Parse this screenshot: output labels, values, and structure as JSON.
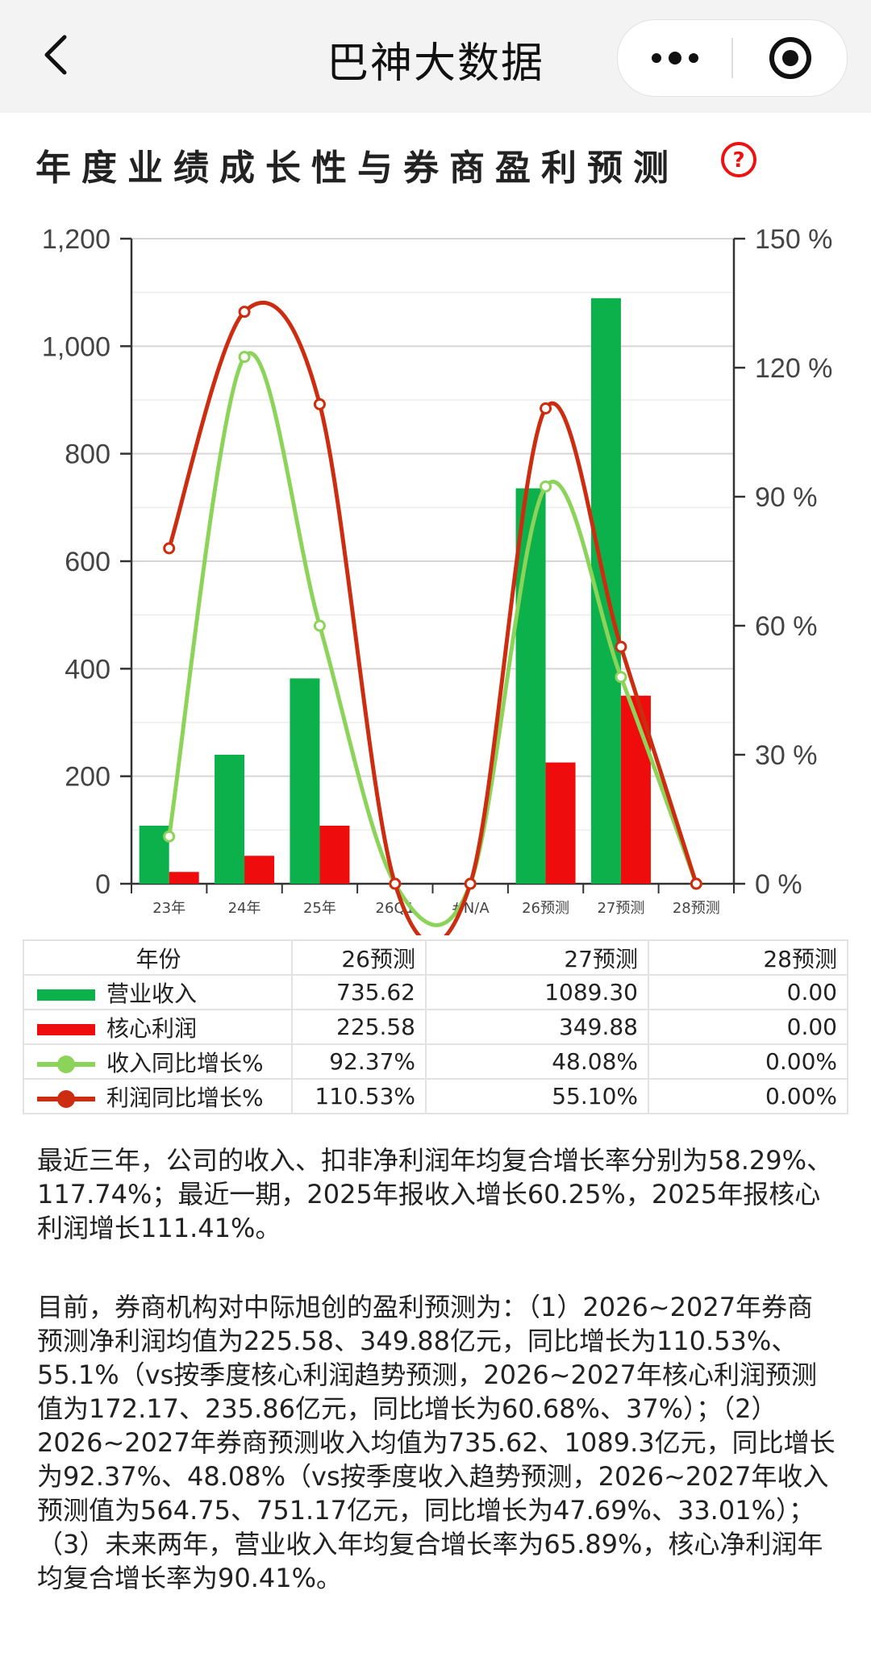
{
  "header": {
    "title": "巴神大数据"
  },
  "section": {
    "title": "年度业绩成长性与券商盈利预测"
  },
  "colors": {
    "revenue": "#0db14b",
    "profit": "#ee0c0c",
    "rev_growth": "#8cd35a",
    "profit_growth": "#cc2d10"
  },
  "chart_data": {
    "type": "bar",
    "categories": [
      "23年",
      "24年",
      "25年",
      "26Q1",
      "#N/A",
      "26预测",
      "27预测",
      "28预测"
    ],
    "y_left": {
      "min": 0,
      "max": 1200,
      "ticks": [
        "0",
        "200",
        "400",
        "600",
        "800",
        "1,000",
        "1,200"
      ]
    },
    "y_right": {
      "min": 0,
      "max": 150,
      "ticks": [
        "0 %",
        "30 %",
        "60 %",
        "90 %",
        "120 %",
        "150 %"
      ]
    },
    "series": [
      {
        "name": "营业收入",
        "type": "bar",
        "axis": "left",
        "values": [
          108,
          240,
          382,
          0,
          0,
          735.62,
          1089.3,
          0
        ]
      },
      {
        "name": "核心利润",
        "type": "bar",
        "axis": "left",
        "values": [
          22,
          52,
          108,
          0,
          0,
          225.58,
          349.88,
          0
        ]
      },
      {
        "name": "收入同比增长%",
        "type": "line",
        "axis": "right",
        "values": [
          11,
          122.5,
          60,
          0,
          0,
          92.37,
          48.08,
          0
        ]
      },
      {
        "name": "利润同比增长%",
        "type": "line",
        "axis": "right",
        "values": [
          78,
          133,
          111.5,
          0,
          0,
          110.53,
          55.1,
          0
        ]
      }
    ],
    "grid": true
  },
  "table": {
    "header_label": "年份",
    "columns": [
      "26预测",
      "27预测",
      "28预测"
    ],
    "rows": [
      {
        "label": "营业收入",
        "legend": "bar-green",
        "values": [
          "735.62",
          "1089.30",
          "0.00"
        ]
      },
      {
        "label": "核心利润",
        "legend": "bar-red",
        "values": [
          "225.58",
          "349.88",
          "0.00"
        ]
      },
      {
        "label": "收入同比增长%",
        "legend": "line-green",
        "values": [
          "92.37%",
          "48.08%",
          "0.00%"
        ]
      },
      {
        "label": "利润同比增长%",
        "legend": "line-red",
        "values": [
          "110.53%",
          "55.10%",
          "0.00%"
        ]
      }
    ]
  },
  "paragraphs": {
    "p1": "最近三年，公司的收入、扣非净利润年均复合增长率分别为58.29%、117.74%；最近一期，2025年报收入增长60.25%，2025年报核心利润增长111.41%。",
    "p2": "目前，券商机构对中际旭创的盈利预测为：（1）2026~2027年券商预测净利润均值为225.58、349.88亿元，同比增长为110.53%、55.1%（vs按季度核心利润趋势预测，2026~2027年核心利润预测值为172.17、235.86亿元，同比增长为60.68%、37%）；（2）2026~2027年券商预测收入均值为735.62、1089.3亿元，同比增长为92.37%、48.08%（vs按季度收入趋势预测，2026~2027年收入预测值为564.75、751.17亿元，同比增长为47.69%、33.01%）；（3）未来两年，营业收入年均复合增长率为65.89%，核心净利润年均复合增长率为90.41%。"
  }
}
